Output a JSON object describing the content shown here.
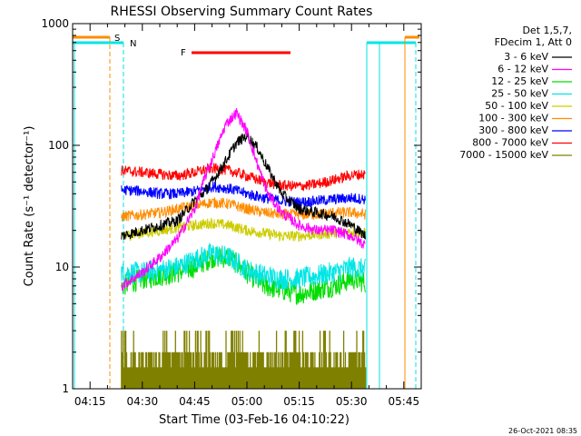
{
  "chart_data": {
    "type": "line",
    "title": "RHESSI Observing Summary Count Rates",
    "xlabel": "Start Time (03-Feb-16 04:10:22)",
    "ylabel": "Count Rate (s⁻¹ detector⁻¹)",
    "yscale": "log",
    "ylim": [
      1,
      1000
    ],
    "xlim": [
      "04:10",
      "05:50"
    ],
    "x_ticks": [
      "04:15",
      "04:30",
      "04:45",
      "05:00",
      "05:15",
      "05:30",
      "05:45"
    ],
    "y_ticks": [
      "1",
      "10",
      "100",
      "1000"
    ],
    "grid": false,
    "legend_position": "top-right",
    "legend_header": [
      "Det 1,5,7,",
      "FDecim 1, Att 0"
    ],
    "footer_timestamp": "26-Oct-2021 08:35",
    "markers": [
      {
        "label": "S",
        "color": "#ff8c00"
      },
      {
        "label": "N",
        "color": "#00e5e5"
      },
      {
        "label": "F",
        "color": "#ff0000"
      }
    ],
    "data_interval": [
      "04:24",
      "05:34"
    ],
    "series": [
      {
        "name": "3 - 6 keV",
        "color": "#000000",
        "x": [
          "04:24",
          "04:30",
          "04:35",
          "04:40",
          "04:45",
          "04:48",
          "04:51",
          "04:54",
          "04:57",
          "05:00",
          "05:03",
          "05:06",
          "05:10",
          "05:15",
          "05:20",
          "05:25",
          "05:30",
          "05:34"
        ],
        "y": [
          18,
          20,
          22,
          24,
          35,
          42,
          55,
          75,
          105,
          120,
          95,
          65,
          40,
          30,
          28,
          26,
          22,
          18
        ]
      },
      {
        "name": "6 - 12 keV",
        "color": "#ff00ff",
        "x": [
          "04:24",
          "04:30",
          "04:35",
          "04:40",
          "04:45",
          "04:48",
          "04:51",
          "04:54",
          "04:57",
          "05:00",
          "05:03",
          "05:06",
          "05:10",
          "05:15",
          "05:20",
          "05:25",
          "05:30",
          "05:34"
        ],
        "y": [
          7,
          9,
          12,
          17,
          30,
          55,
          90,
          150,
          185,
          130,
          70,
          40,
          28,
          22,
          20,
          20,
          18,
          15
        ]
      },
      {
        "name": "12 - 25 keV",
        "color": "#00dd00",
        "x": [
          "04:24",
          "04:30",
          "04:35",
          "04:40",
          "04:45",
          "04:50",
          "04:55",
          "05:00",
          "05:05",
          "05:10",
          "05:15",
          "05:20",
          "05:25",
          "05:30",
          "05:34"
        ],
        "y": [
          7,
          8,
          8.5,
          9,
          10,
          12,
          12,
          9,
          7,
          6.5,
          6,
          6.5,
          7,
          8,
          7.5
        ]
      },
      {
        "name": "25 - 50 keV",
        "color": "#00e5e5",
        "x": [
          "04:24",
          "04:30",
          "04:35",
          "04:40",
          "04:45",
          "04:50",
          "04:55",
          "05:00",
          "05:05",
          "05:10",
          "05:15",
          "05:20",
          "05:25",
          "05:30",
          "05:34"
        ],
        "y": [
          9,
          9,
          9.5,
          10,
          11.5,
          13,
          12,
          9.5,
          8.5,
          8,
          8,
          8.5,
          9,
          10,
          9.5
        ]
      },
      {
        "name": "50 - 100 keV",
        "color": "#cccc00",
        "x": [
          "04:24",
          "04:30",
          "04:35",
          "04:40",
          "04:45",
          "04:50",
          "04:55",
          "05:00",
          "05:05",
          "05:10",
          "05:15",
          "05:20",
          "05:25",
          "05:30",
          "05:34"
        ],
        "y": [
          18,
          19,
          20,
          21,
          22,
          23,
          22,
          20,
          19,
          18,
          18,
          18.5,
          19,
          19.5,
          19
        ]
      },
      {
        "name": "100 - 300 keV",
        "color": "#ff8c00",
        "x": [
          "04:24",
          "04:30",
          "04:35",
          "04:40",
          "04:45",
          "04:50",
          "04:55",
          "05:00",
          "05:05",
          "05:10",
          "05:15",
          "05:20",
          "05:25",
          "05:30",
          "05:34"
        ],
        "y": [
          26,
          27,
          28,
          30,
          32,
          34,
          33,
          30,
          28,
          27,
          27,
          27,
          28,
          28,
          27
        ]
      },
      {
        "name": "300 - 800 keV",
        "color": "#0000ff",
        "x": [
          "04:24",
          "04:30",
          "04:35",
          "04:40",
          "04:45",
          "04:50",
          "04:55",
          "05:00",
          "05:05",
          "05:10",
          "05:15",
          "05:20",
          "05:25",
          "05:30",
          "05:34"
        ],
        "y": [
          43,
          42,
          40,
          40,
          42,
          46,
          44,
          40,
          37,
          35,
          34,
          35,
          36,
          37,
          36
        ]
      },
      {
        "name": "800 - 7000 keV",
        "color": "#ff0000",
        "x": [
          "04:24",
          "04:30",
          "04:35",
          "04:40",
          "04:45",
          "04:50",
          "04:55",
          "05:00",
          "05:05",
          "05:10",
          "05:15",
          "05:20",
          "05:25",
          "05:30",
          "05:34"
        ],
        "y": [
          62,
          60,
          58,
          56,
          60,
          65,
          62,
          56,
          50,
          47,
          46,
          48,
          52,
          57,
          58
        ]
      },
      {
        "name": "7000 - 15000 keV",
        "color": "#808000",
        "x": [
          "04:24",
          "04:34",
          "04:45",
          "04:55",
          "05:05",
          "05:15",
          "05:25",
          "05:30",
          "05:34"
        ],
        "y": [
          1.5,
          1.8,
          2.2,
          2.0,
          1.6,
          1.6,
          1.6,
          2.0,
          1.6
        ]
      }
    ]
  }
}
